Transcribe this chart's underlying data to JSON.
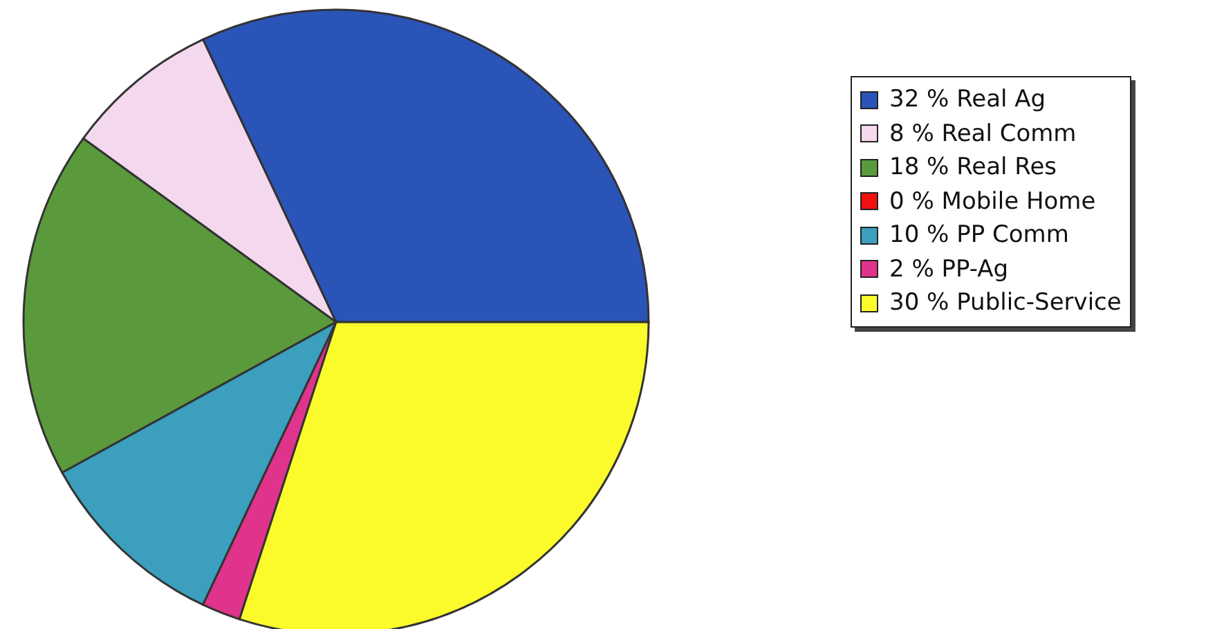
{
  "chart_data": {
    "type": "pie",
    "categories": [
      "Real Ag",
      "Real Comm",
      "Real Res",
      "Mobile Home",
      "PP Comm",
      "PP-Ag",
      "Public-Service"
    ],
    "values": [
      32,
      8,
      18,
      0,
      10,
      2,
      30
    ],
    "value_labels": [
      "32 %",
      "8 %",
      "18 %",
      "0 %",
      "10 %",
      "2 %",
      "30 %"
    ],
    "colors": [
      "#2b54b8",
      "#f4d8ee",
      "#5b9a3c",
      "#f01010",
      "#3b9fbd",
      "#e0338c",
      "#fbfb2c"
    ],
    "legend": "right"
  }
}
